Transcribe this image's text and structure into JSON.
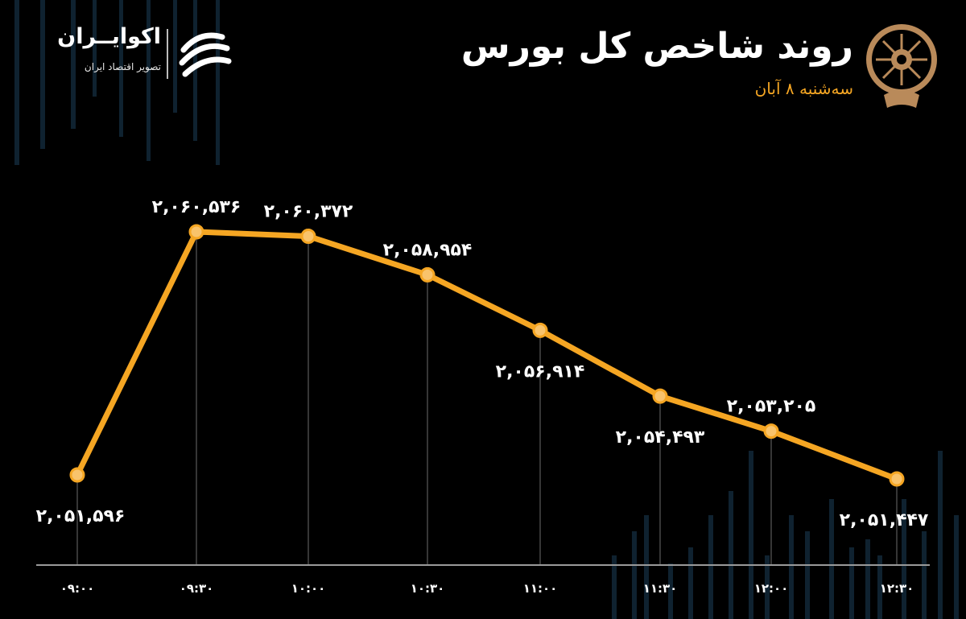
{
  "header": {
    "title": "روند شاخص کل بورس",
    "subtitle": "سه‌شنبه ۸ آبان"
  },
  "brand": {
    "name": "اکوایــران",
    "tagline": "تصویر اقتصاد ایران",
    "emblem_icon": "stock-exchange-emblem-icon",
    "logo_icon": "ecoiran-swirl-icon"
  },
  "colors": {
    "background": "#000000",
    "line": "#f5a623",
    "text": "#ffffff",
    "grid": "#6b6b6b",
    "background_bars": "#0f2230"
  },
  "chart_data": {
    "type": "line",
    "title": "روند شاخص کل بورس",
    "xlabel": "",
    "ylabel": "",
    "categories": [
      "۰۹:۰۰",
      "۰۹:۳۰",
      "۱۰:۰۰",
      "۱۰:۳۰",
      "۱۱:۰۰",
      "۱۱:۳۰",
      "۱۲:۰۰",
      "۱۲:۳۰"
    ],
    "values": [
      2051596,
      2060536,
      2060372,
      2058954,
      2056914,
      2054493,
      2053205,
      2051447
    ],
    "data_labels": [
      "۲,۰۵۱,۵۹۶",
      "۲,۰۶۰,۵۳۶",
      "۲,۰۶۰,۳۷۲",
      "۲,۰۵۸,۹۵۴",
      "۲,۰۵۶,۹۱۴",
      "۲,۰۵۴,۴۹۳",
      "۲,۰۵۳,۲۰۵",
      "۲,۰۵۱,۴۴۷"
    ],
    "label_positions": [
      "below",
      "above",
      "above",
      "above",
      "below",
      "below",
      "above",
      "below"
    ],
    "ylim": [
      2050000,
      2062000
    ],
    "grid": "vertical drop lines",
    "legend": "none"
  }
}
